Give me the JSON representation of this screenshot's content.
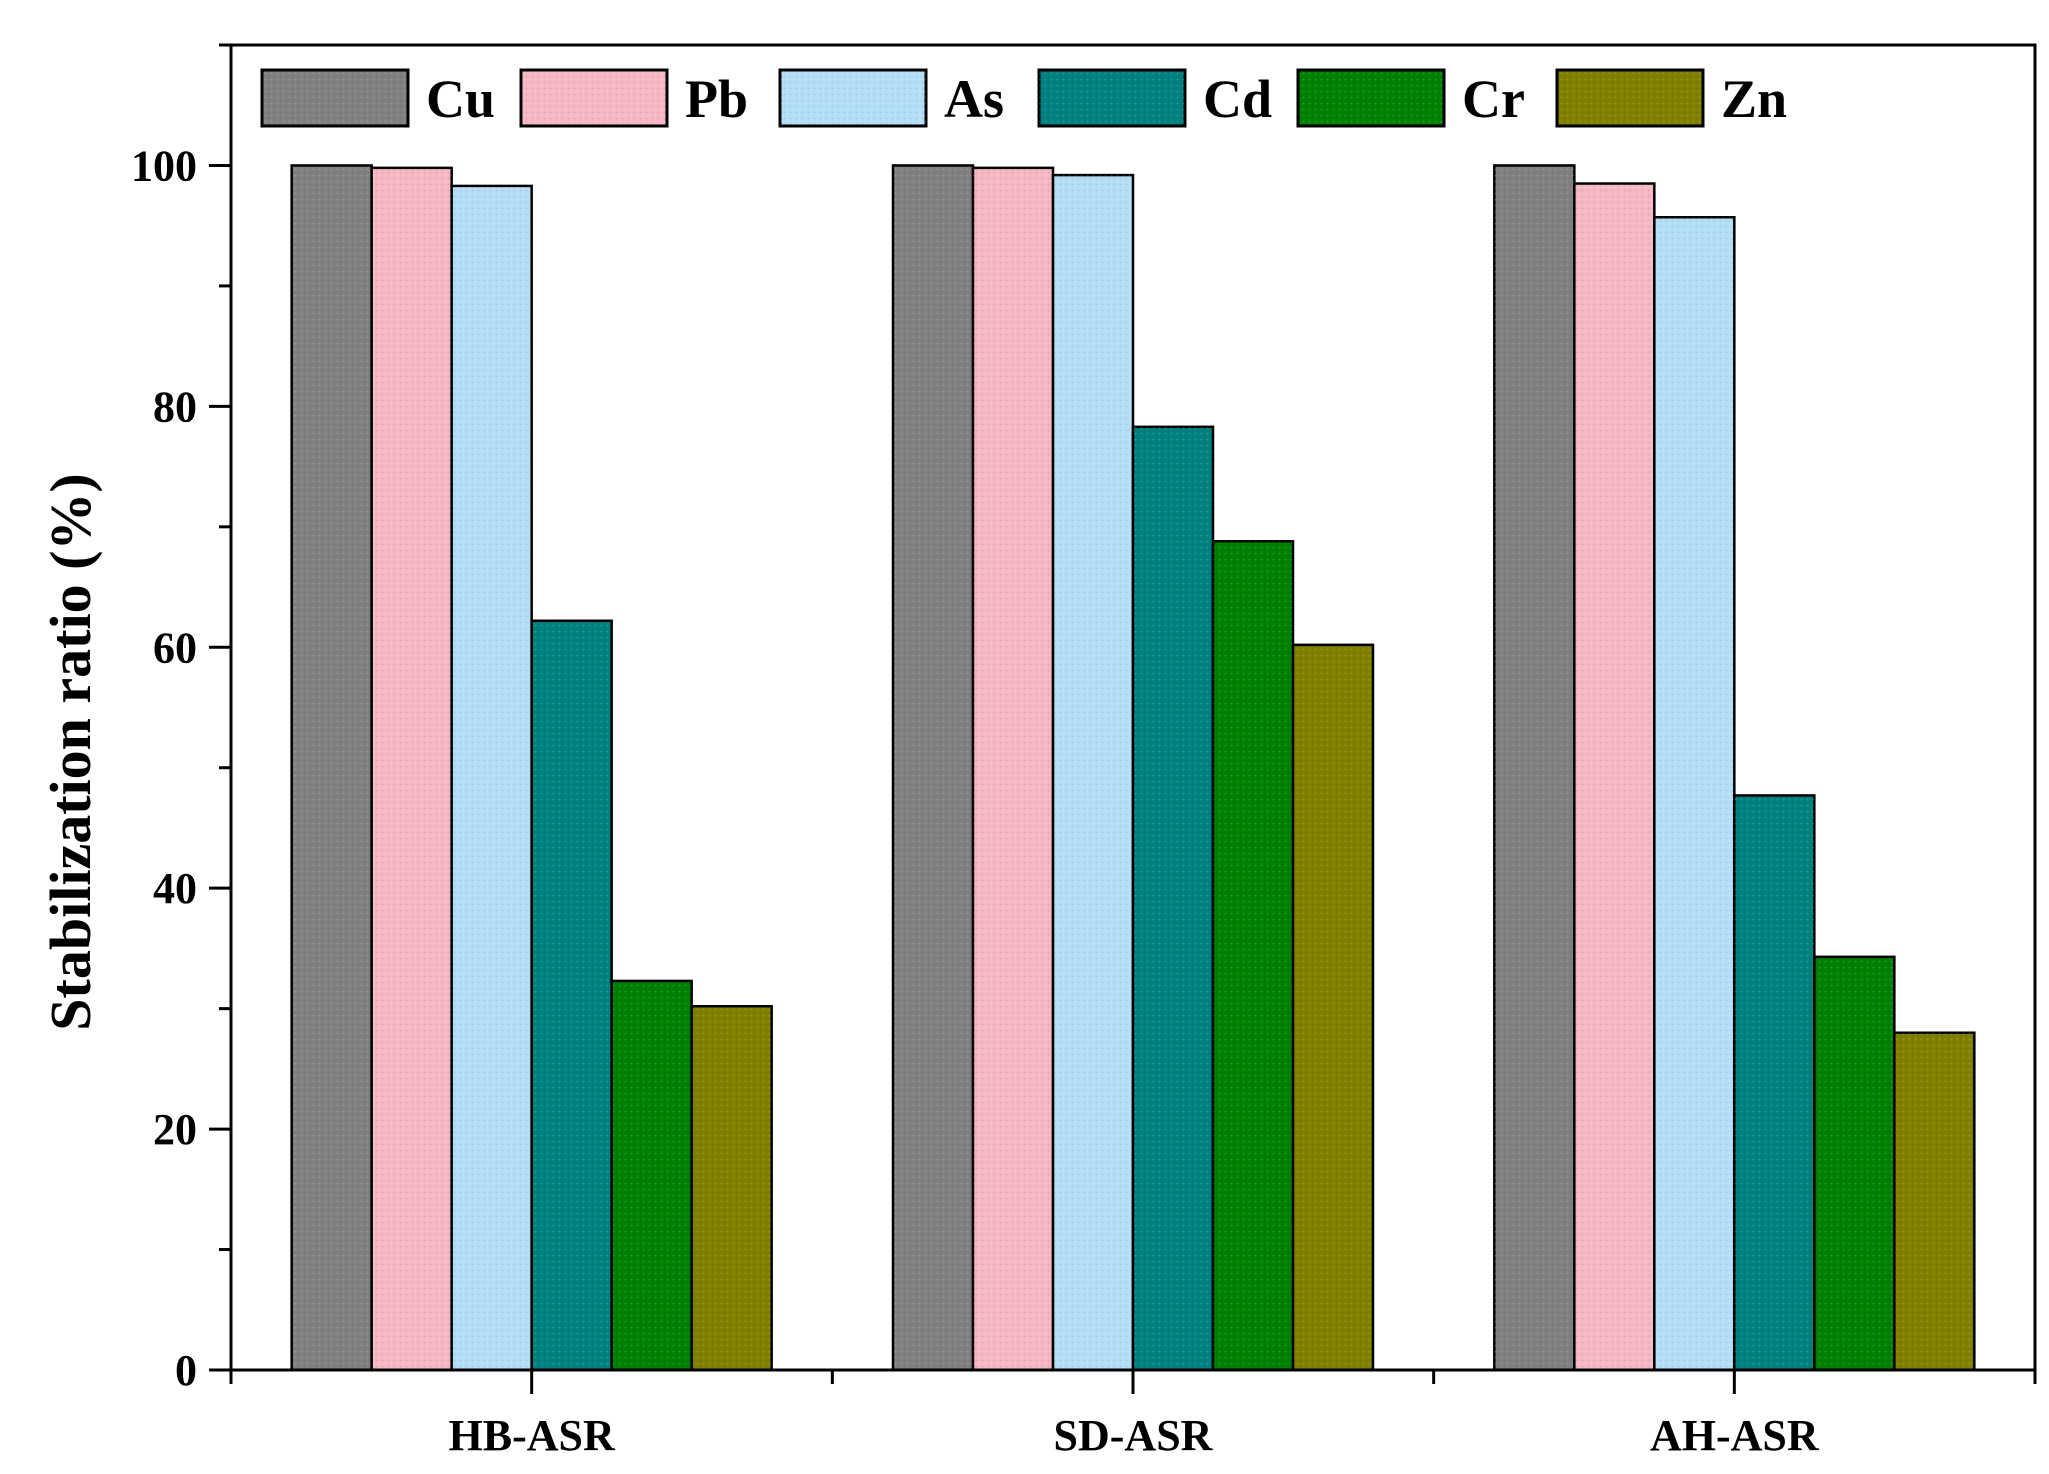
{
  "chart_data": {
    "type": "bar",
    "title": "",
    "xlabel": "",
    "ylabel": "Stabilization ratio (%)",
    "ylim": [
      0,
      110
    ],
    "yticks": [
      0,
      20,
      40,
      60,
      80,
      100
    ],
    "grid": false,
    "legend_position": "top-left, horizontal",
    "categories": [
      "HB-ASR",
      "SD-ASR",
      "AH-ASR"
    ],
    "series": [
      {
        "name": "Cu",
        "color": "#808080",
        "values": [
          100,
          100,
          100
        ]
      },
      {
        "name": "Pb",
        "color": "#f5b8c4",
        "values": [
          99.8,
          99.8,
          98.5
        ]
      },
      {
        "name": "As",
        "color": "#b3def5",
        "values": [
          98.3,
          99.2,
          95.7
        ]
      },
      {
        "name": "Cd",
        "color": "#008080",
        "values": [
          62.2,
          78.3,
          47.7
        ]
      },
      {
        "name": "Cr",
        "color": "#008000",
        "values": [
          32.3,
          68.8,
          34.3
        ]
      },
      {
        "name": "Zn",
        "color": "#808000",
        "values": [
          30.2,
          60.2,
          28.0
        ]
      }
    ]
  }
}
